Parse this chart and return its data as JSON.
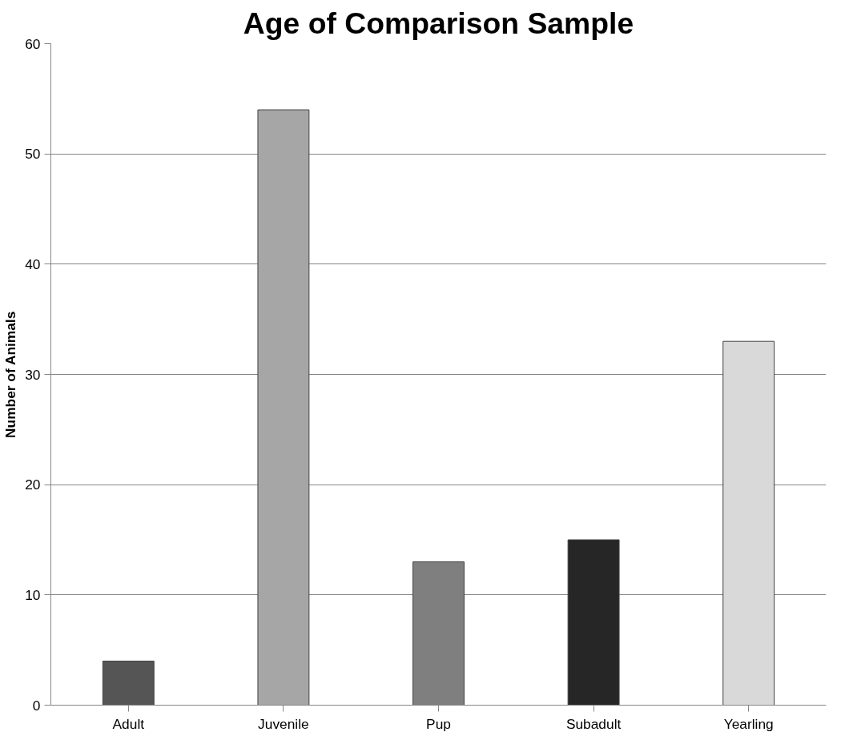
{
  "chart_data": {
    "type": "bar",
    "title": "Age of Comparison Sample",
    "ylabel": "Number of Animals",
    "categories": [
      "Adult",
      "Juvenile",
      "Pup",
      "Subadult",
      "Yearling"
    ],
    "values": [
      4,
      54,
      13,
      15,
      33
    ],
    "colors": [
      "#555555",
      "#a6a6a6",
      "#7f7f7f",
      "#262626",
      "#d9d9d9"
    ],
    "ylim": [
      0,
      60
    ],
    "yticks": [
      0,
      10,
      20,
      30,
      40,
      50,
      60
    ],
    "grid": "y"
  }
}
